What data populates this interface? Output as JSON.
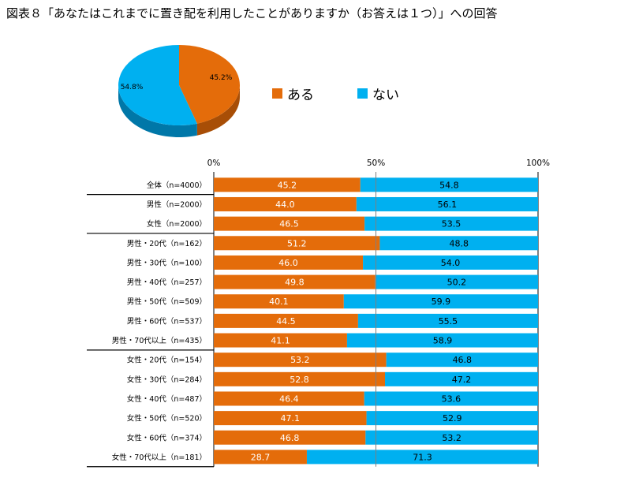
{
  "title": "図表８「あなたはこれまでに置き配を利用したことがありますか（お答えは１つ）」への回答",
  "colors": {
    "yes": "#E46C0A",
    "no": "#00B0F0",
    "yes_side": "#A84E06",
    "no_side": "#0077A8"
  },
  "legend": [
    {
      "label": "ある",
      "color": "#E46C0A"
    },
    {
      "label": "ない",
      "color": "#00B0F0"
    }
  ],
  "chart_data": [
    {
      "type": "pie",
      "slices": [
        {
          "label": "ある",
          "value": 45.2,
          "display": "45.2%"
        },
        {
          "label": "ない",
          "value": 54.8,
          "display": "54.8%"
        }
      ]
    },
    {
      "type": "bar",
      "orientation": "horizontal",
      "stacked": true,
      "xlim": [
        0,
        100
      ],
      "xticks": [
        "0%",
        "50%",
        "100%"
      ],
      "categories": [
        "全体（n=4000）",
        "男性（n=2000）",
        "女性（n=2000）",
        "男性・20代（n=162）",
        "男性・30代（n=100）",
        "男性・40代（n=257）",
        "男性・50代（n=509）",
        "男性・60代（n=537）",
        "男性・70代以上（n=435）",
        "女性・20代（n=154）",
        "女性・30代（n=284）",
        "女性・40代（n=487）",
        "女性・50代（n=520）",
        "女性・60代（n=374）",
        "女性・70代以上（n=181）"
      ],
      "series": [
        {
          "name": "ある",
          "values": [
            45.2,
            44.0,
            46.5,
            51.2,
            46.0,
            49.8,
            40.1,
            44.5,
            41.1,
            53.2,
            52.8,
            46.4,
            47.1,
            46.8,
            28.7
          ]
        },
        {
          "name": "ない",
          "values": [
            54.8,
            56.1,
            53.5,
            48.8,
            54.0,
            50.2,
            59.9,
            55.5,
            58.9,
            46.8,
            47.2,
            53.6,
            52.9,
            53.2,
            71.3
          ]
        }
      ],
      "data_labels": [
        [
          "45.2",
          "54.8"
        ],
        [
          "44.0",
          "56.1"
        ],
        [
          "46.5",
          "53.5"
        ],
        [
          "51.2",
          "48.8"
        ],
        [
          "46.0",
          "54.0"
        ],
        [
          "49.8",
          "50.2"
        ],
        [
          "40.1",
          "59.9"
        ],
        [
          "44.5",
          "55.5"
        ],
        [
          "41.1",
          "58.9"
        ],
        [
          "53.2",
          "46.8"
        ],
        [
          "52.8",
          "47.2"
        ],
        [
          "46.4",
          "53.6"
        ],
        [
          "47.1",
          "52.9"
        ],
        [
          "46.8",
          "53.2"
        ],
        [
          "28.7",
          "71.3"
        ]
      ],
      "group_separators_after": [
        0,
        2,
        8
      ]
    }
  ]
}
